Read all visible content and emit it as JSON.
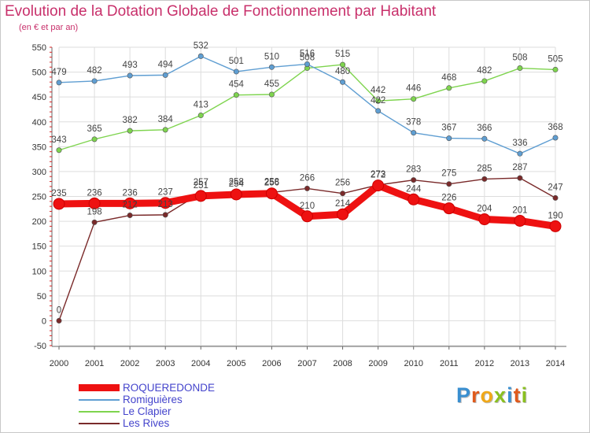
{
  "header": {
    "title": "Evolution de la Dotation Globale de Fonctionnement par Habitant",
    "subtitle": "(en € et par an)"
  },
  "logo": {
    "text": "Proxiti",
    "colors": [
      "#3a8fd0",
      "#e05a1c",
      "#f0a818",
      "#8ac020",
      "#3a8fd0",
      "#e05a1c",
      "#8ac020"
    ]
  },
  "chart_data": {
    "type": "line",
    "title": "Evolution de la Dotation Globale de Fonctionnement par Habitant",
    "subtitle": "(en € et par an)",
    "xlabel": "",
    "ylabel": "",
    "x": [
      "2000",
      "2001",
      "2002",
      "2003",
      "2004",
      "2005",
      "2006",
      "2007",
      "2008",
      "2009",
      "2010",
      "2011",
      "2012",
      "2013",
      "2014"
    ],
    "ylim": [
      -50,
      550
    ],
    "yticks": [
      -50,
      0,
      50,
      100,
      150,
      200,
      250,
      300,
      350,
      400,
      450,
      500,
      550
    ],
    "grid": true,
    "legend_position": "bottom-left",
    "series": [
      {
        "name": "Les Rives",
        "color": "#7a2a2a",
        "values": [
          0,
          198,
          212,
          213,
          257,
          258,
          258,
          266,
          256,
          273,
          283,
          275,
          285,
          287,
          247
        ]
      },
      {
        "name": "Le Clapier",
        "color": "#7ed44e",
        "values": [
          343,
          365,
          382,
          384,
          413,
          454,
          455,
          508,
          515,
          442,
          446,
          468,
          482,
          508,
          505
        ]
      },
      {
        "name": "Romiguières",
        "color": "#5f9ed2",
        "values": [
          479,
          482,
          493,
          494,
          532,
          501,
          510,
          516,
          480,
          422,
          378,
          367,
          366,
          336,
          368
        ]
      },
      {
        "name": "ROQUEREDONDE",
        "color": "#ee1111",
        "values": [
          235,
          236,
          236,
          237,
          251,
          254,
          256,
          210,
          214,
          272,
          244,
          226,
          204,
          201,
          190
        ]
      }
    ],
    "legend": [
      "ROQUEREDONDE",
      "Romiguières",
      "Le Clapier",
      "Les Rives"
    ]
  }
}
